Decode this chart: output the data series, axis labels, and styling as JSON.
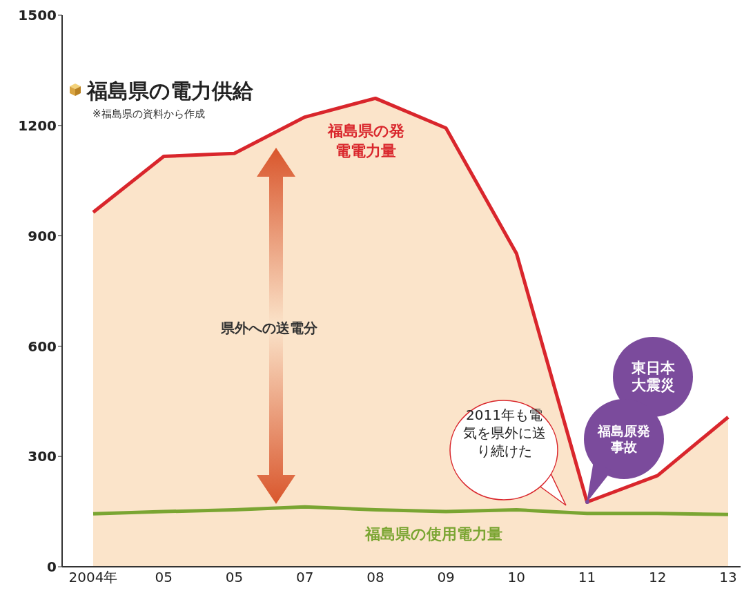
{
  "chart_data": {
    "type": "line",
    "title": "福島県の電力供給",
    "subtitle": "※福島県の資料から作成",
    "categories": [
      "2004年",
      "05",
      "05",
      "07",
      "08",
      "09",
      "10",
      "11",
      "12",
      "13"
    ],
    "series": [
      {
        "name": "福島県の発電電力量",
        "type": "area",
        "color": "#d9262c",
        "values": [
          964,
          1116,
          1124,
          1223,
          1274,
          1193,
          852,
          176,
          248,
          407
        ]
      },
      {
        "name": "福島県の使用電力量",
        "color": "#7aa532",
        "values": [
          144,
          150,
          155,
          163,
          155,
          150,
          155,
          145,
          145,
          142
        ]
      }
    ],
    "ylim": [
      0,
      1500
    ],
    "yticks": [
      0,
      300,
      600,
      900,
      1200,
      1500
    ],
    "grid": false,
    "marker": "none",
    "annotations": [
      "県外への送電分",
      "2011年も電気を県外に送り続けた",
      "東日本大震災",
      "福島原発事故"
    ]
  }
}
